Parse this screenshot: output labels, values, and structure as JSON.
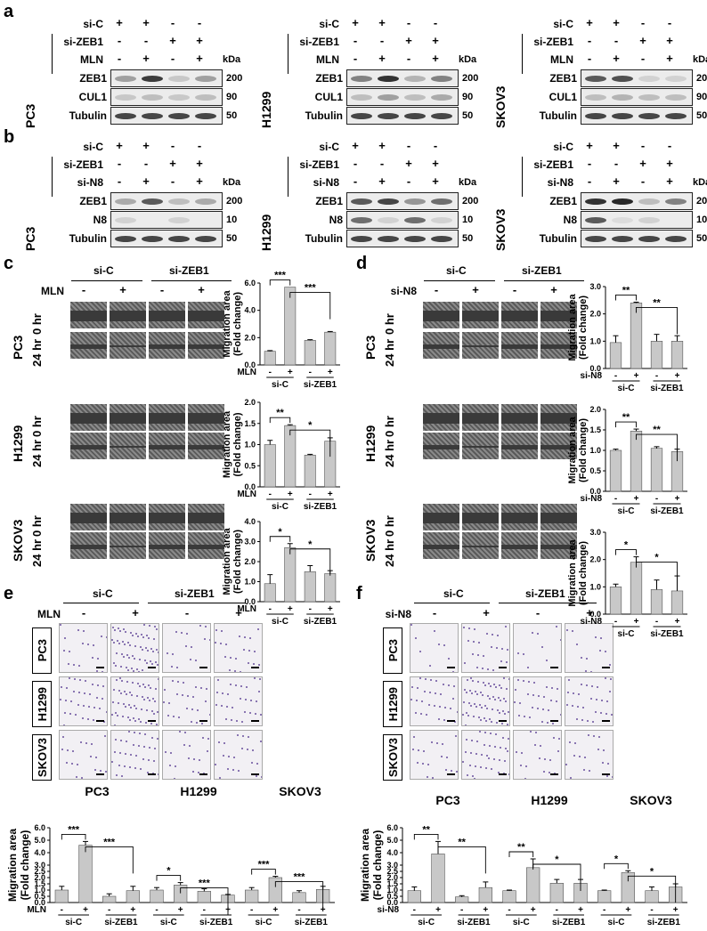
{
  "panels": {
    "a": "a",
    "b": "b",
    "c": "c",
    "d": "d",
    "e": "e",
    "f": "f"
  },
  "blot_row_labels": {
    "si_c": "si-C",
    "si_zeb1": "si-ZEB1",
    "mln": "MLN",
    "si_n8": "si-N8",
    "kda": "kDa"
  },
  "cell_lines": [
    "PC3",
    "H1299",
    "SKOV3"
  ],
  "blot_a": {
    "signs_sic": [
      "+",
      "+",
      "-",
      "-"
    ],
    "signs_zeb": [
      "-",
      "-",
      "+",
      "+"
    ],
    "signs_treat": [
      "-",
      "+",
      "-",
      "+"
    ],
    "proteins": [
      "ZEB1",
      "CUL1",
      "Tubulin"
    ],
    "weights": [
      "200",
      "90",
      "50"
    ]
  },
  "blot_b": {
    "signs_sic": [
      "+",
      "+",
      "-",
      "-"
    ],
    "signs_zeb": [
      "-",
      "-",
      "+",
      "+"
    ],
    "signs_treat": [
      "-",
      "+",
      "-",
      "+"
    ],
    "proteins": [
      "ZEB1",
      "N8",
      "Tubulin"
    ],
    "weights": [
      "200",
      "10",
      "50"
    ]
  },
  "scratch": {
    "group_sic": "si-C",
    "group_zeb": "si-ZEB1",
    "mln_label": "MLN",
    "n8_label": "si-N8",
    "minus": "-",
    "plus": "+",
    "time_0": "0 hr",
    "time_24": "24 hr"
  },
  "axis": {
    "ylabel_1": "Migration area",
    "ylabel_2": "(Fold change)"
  },
  "chart_data": [
    {
      "id": "c_pc3",
      "type": "bar",
      "categories": [
        "si-C -",
        "si-C +",
        "si-ZEB1 -",
        "si-ZEB1 +"
      ],
      "values": [
        1.0,
        5.7,
        1.8,
        2.4
      ],
      "errors": [
        0.05,
        0.0,
        0.05,
        0.05
      ],
      "ylim": [
        0,
        6
      ],
      "yticks": [
        "0.0",
        "2.0",
        "4.0",
        "6.0"
      ],
      "ytick_vals": [
        0,
        2,
        4,
        6
      ],
      "treat": "MLN",
      "sig": [
        "***",
        "***"
      ]
    },
    {
      "id": "c_h1299",
      "type": "bar",
      "categories": [
        "si-C -",
        "si-C +",
        "si-ZEB1 -",
        "si-ZEB1 +"
      ],
      "values": [
        1.0,
        1.45,
        0.75,
        1.08
      ],
      "errors": [
        0.1,
        0.02,
        0.02,
        0.08
      ],
      "ylim": [
        0,
        2.0
      ],
      "yticks": [
        "0.0",
        "0.5",
        "1.0",
        "1.5",
        "2.0"
      ],
      "ytick_vals": [
        0,
        0.5,
        1.0,
        1.5,
        2.0
      ],
      "treat": "MLN",
      "sig": [
        "**",
        "*"
      ]
    },
    {
      "id": "c_skov3",
      "type": "bar",
      "categories": [
        "si-C -",
        "si-C +",
        "si-ZEB1 -",
        "si-ZEB1 +"
      ],
      "values": [
        0.9,
        2.7,
        1.5,
        1.4
      ],
      "errors": [
        0.45,
        0.2,
        0.3,
        0.15
      ],
      "ylim": [
        0,
        4.0
      ],
      "yticks": [
        "0.0",
        "1.0",
        "2.0",
        "3.0",
        "4.0"
      ],
      "ytick_vals": [
        0,
        1,
        2,
        3,
        4
      ],
      "treat": "MLN",
      "sig": [
        "*",
        "*"
      ]
    },
    {
      "id": "d_pc3",
      "type": "bar",
      "categories": [
        "si-C -",
        "si-C +",
        "si-ZEB1 -",
        "si-ZEB1 +"
      ],
      "values": [
        0.95,
        2.4,
        1.0,
        1.0
      ],
      "errors": [
        0.25,
        0.03,
        0.25,
        0.2
      ],
      "ylim": [
        0,
        3.0
      ],
      "yticks": [
        "0.0",
        "1.0",
        "2.0",
        "3.0"
      ],
      "ytick_vals": [
        0,
        1,
        2,
        3
      ],
      "treat": "si-N8",
      "sig": [
        "**",
        "**"
      ]
    },
    {
      "id": "d_h1299",
      "type": "bar",
      "categories": [
        "si-C -",
        "si-C +",
        "si-ZEB1 -",
        "si-ZEB1 +"
      ],
      "values": [
        1.0,
        1.47,
        1.05,
        0.97
      ],
      "errors": [
        0.03,
        0.05,
        0.04,
        0.06
      ],
      "ylim": [
        0,
        2.0
      ],
      "yticks": [
        "0.0",
        "0.5",
        "1.0",
        "1.5",
        "2.0"
      ],
      "ytick_vals": [
        0,
        0.5,
        1.0,
        1.5,
        2.0
      ],
      "treat": "si-N8",
      "sig": [
        "**",
        "**"
      ]
    },
    {
      "id": "d_skov3",
      "type": "bar",
      "categories": [
        "si-C -",
        "si-C +",
        "si-ZEB1 -",
        "si-ZEB1 +"
      ],
      "values": [
        1.0,
        1.9,
        0.9,
        0.85
      ],
      "errors": [
        0.1,
        0.2,
        0.35,
        0.55
      ],
      "ylim": [
        0,
        3.0
      ],
      "yticks": [
        "0.0",
        "1.0",
        "2.0",
        "3.0"
      ],
      "ytick_vals": [
        0,
        1,
        2,
        3
      ],
      "treat": "si-N8",
      "sig": [
        "*",
        "*"
      ]
    },
    {
      "id": "e_bar",
      "type": "bar",
      "categories": [
        "PC3 si-C -",
        "PC3 si-C +",
        "PC3 si-ZEB1 -",
        "PC3 si-ZEB1 +",
        "H1299 si-C -",
        "H1299 si-C +",
        "H1299 si-ZEB1 -",
        "H1299 si-ZEB1 +",
        "SKOV3 si-C -",
        "SKOV3 si-C +",
        "SKOV3 si-ZEB1 -",
        "SKOV3 si-ZEB1 +"
      ],
      "values": [
        1.0,
        4.6,
        0.5,
        0.95,
        1.0,
        1.4,
        0.9,
        0.6,
        1.0,
        2.0,
        0.8,
        1.05
      ],
      "errors": [
        0.3,
        0.3,
        0.2,
        0.35,
        0.2,
        0.2,
        0.2,
        0.05,
        0.2,
        0.1,
        0.15,
        0.25
      ],
      "ylim": [
        0,
        6.0
      ],
      "yticks": [
        "0.0",
        "0.5",
        "1.0",
        "1.5",
        "2.0",
        "2.5",
        "3.0",
        "4.0",
        "5.0",
        "6.0"
      ],
      "ytick_vals": [
        0,
        0.5,
        1.0,
        1.5,
        2.0,
        2.5,
        3.0,
        4.0,
        5.0,
        6.0
      ],
      "treat": "MLN",
      "sig": [
        "***",
        "***",
        "*",
        "***",
        "***",
        "***"
      ],
      "group_titles": [
        "PC3",
        "H1299",
        "SKOV3"
      ]
    },
    {
      "id": "f_bar",
      "type": "bar",
      "categories": [
        "PC3 si-C -",
        "PC3 si-C +",
        "PC3 si-ZEB1 -",
        "PC3 si-ZEB1 +",
        "H1299 si-C -",
        "H1299 si-C +",
        "H1299 si-ZEB1 -",
        "H1299 si-ZEB1 +",
        "SKOV3 si-C -",
        "SKOV3 si-C +",
        "SKOV3 si-ZEB1 -",
        "SKOV3 si-ZEB1 +"
      ],
      "values": [
        0.95,
        3.9,
        0.45,
        1.2,
        0.95,
        2.8,
        1.55,
        1.55,
        0.95,
        2.4,
        0.95,
        1.25
      ],
      "errors": [
        0.3,
        1.0,
        0.1,
        0.45,
        0.05,
        0.7,
        0.3,
        0.3,
        0.05,
        0.15,
        0.3,
        0.25
      ],
      "ylim": [
        0,
        6.0
      ],
      "yticks": [
        "0.0",
        "0.5",
        "1.0",
        "1.5",
        "2.0",
        "2.5",
        "3.0",
        "4.0",
        "5.0",
        "6.0"
      ],
      "ytick_vals": [
        0,
        0.5,
        1.0,
        1.5,
        2.0,
        2.5,
        3.0,
        4.0,
        5.0,
        6.0
      ],
      "treat": "si-N8",
      "sig": [
        "**",
        "**",
        "**",
        "*",
        "*",
        "*"
      ],
      "group_titles": [
        "PC3",
        "H1299",
        "SKOV3"
      ]
    }
  ],
  "colors": {
    "bar": "#c8c8c8",
    "stain": "#6a4f9c"
  }
}
